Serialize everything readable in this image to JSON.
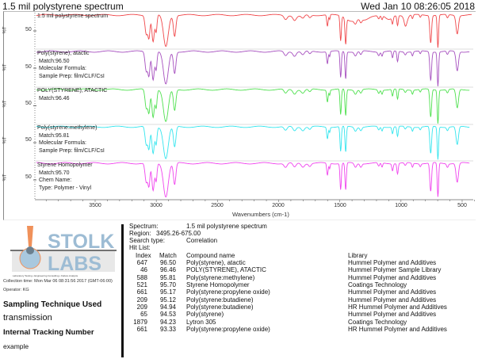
{
  "header": {
    "title": "1.5 mil polystyrene spectrum",
    "datetime": "Wed Jan 10 08:26:05 2018"
  },
  "chart_data": {
    "type": "line",
    "title": "1.5 mil polystyrene spectrum",
    "xlabel": "Wavenumbers (cm-1)",
    "ylabel": "%T",
    "xlim": [
      4000,
      400
    ],
    "x_ticks": [
      3500,
      3000,
      2500,
      2000,
      1500,
      1000,
      500
    ],
    "y_tick_per_panel": "50",
    "layout": "stacked panels, one per spectrum, shared x-axis",
    "series": [
      {
        "name": "1.5 mil polystyrene spectrum",
        "color": "#f0474a",
        "labels": [
          "1.5 mil polystyrene spectrum"
        ],
        "bands_cm1": [
          3082,
          3060,
          3026,
          3001,
          2922,
          2850,
          1943,
          1870,
          1802,
          1745,
          1601,
          1583,
          1493,
          1452,
          1372,
          1328,
          1182,
          1155,
          1069,
          1028,
          906,
          842,
          757,
          698,
          540
        ]
      },
      {
        "name": "Poly(styrene), atactic",
        "color": "#a64fbf",
        "labels": [
          "Poly(styrene), atactic",
          "Match:96.50",
          "Molecular Formula:",
          "Sample Prep:  film/CLF/CsI"
        ],
        "bands_cm1": [
          3082,
          3060,
          3026,
          2922,
          2850,
          1601,
          1493,
          1452,
          1372,
          1069,
          1028,
          757,
          698,
          540
        ]
      },
      {
        "name": "POLY(STYRENE), ATACTIC",
        "color": "#4de04d",
        "labels": [
          "POLY(STYRENE), ATACTIC",
          "Match:96.46"
        ],
        "bands_cm1": [
          3082,
          3060,
          3026,
          2922,
          2850,
          1601,
          1493,
          1452,
          1372,
          1069,
          1028,
          757,
          698,
          540
        ]
      },
      {
        "name": "Poly(styrene:methylene)",
        "color": "#33e5ee",
        "labels": [
          "Poly(styrene:methylene)",
          "Match:95.81",
          "Molecular Formula:",
          "Sample Prep:  film/CLF/CsI"
        ],
        "bands_cm1": [
          3082,
          3060,
          3026,
          2922,
          2850,
          1601,
          1493,
          1452,
          1372,
          1069,
          1028,
          757,
          698,
          540
        ]
      },
      {
        "name": "Styrene Homopolymer",
        "color": "#f044ee",
        "labels": [
          "Styrene Homopolymer",
          "Match:95.70",
          "Chem Name:",
          "Type:  Polymer - Vinyl"
        ],
        "bands_cm1": [
          3082,
          3060,
          3026,
          2922,
          2850,
          1601,
          1493,
          1452,
          1372,
          1069,
          1028,
          757,
          698,
          540
        ]
      }
    ]
  },
  "panels": [
    {
      "ylabel": "%T",
      "ytick": "50",
      "lines": [
        "1.5 mil polystyrene spectrum"
      ]
    },
    {
      "ylabel": "%T",
      "ytick": "50",
      "lines": [
        "Poly(styrene), atactic",
        "Match:96.50",
        "Molecular Formula:",
        "Sample Prep:  film/CLF/CsI"
      ]
    },
    {
      "ylabel": "%T",
      "ytick": "50",
      "lines": [
        "POLY(STYRENE), ATACTIC",
        "Match:96.46"
      ]
    },
    {
      "ylabel": "%T",
      "ytick": "50",
      "lines": [
        "Poly(styrene:methylene)",
        "Match:95.81",
        "Molecular Formula:",
        "Sample Prep:  film/CLF/CsI"
      ]
    },
    {
      "ylabel": "%T",
      "ytick": "50",
      "lines": [
        "Styrene Homopolymer",
        "Match:95.70",
        "Chem Name:",
        "Type:  Polymer - Vinyl"
      ]
    }
  ],
  "xaxis": {
    "label": "Wavenumbers (cm-1)",
    "ticks": [
      "3500",
      "3000",
      "2500",
      "2000",
      "1500",
      "1000",
      "500"
    ]
  },
  "logo": {
    "line1": "STOLK",
    "line2": "LABS",
    "tagline": "Laboratory Testing • Engineering Consulting • Failure Analysis",
    "colors": {
      "text": "#9dbcd4",
      "drop": "#a9c8de",
      "stem": "#f0915a",
      "bar": "#e6e6e6"
    }
  },
  "info": {
    "collection_time": "Collection time: Mon Mar 06 08:31:56 2017 (GMT-06:00)",
    "operator": "Operator:  KG",
    "sampling_heading": "Sampling Technique Used",
    "sampling_value": "transmission",
    "tracking_heading": "Internal Tracking Number",
    "tracking_value": "example"
  },
  "search": {
    "spectrum_label": "Spectrum:",
    "spectrum_value": "1.5 mil polystyrene spectrum",
    "region_label": "Region:",
    "region_value": "3495.26-675.00",
    "search_type_label": "Search type:",
    "search_type_value": "Correlation",
    "hit_list_label": "Hit List:",
    "columns": {
      "index": "Index",
      "match": "Match",
      "compound": "Compound name",
      "library": "Library"
    },
    "hits": [
      {
        "index": "647",
        "match": "96.50",
        "compound": "Poly(styrene), atactic",
        "library": "Hummel Polymer and Additives"
      },
      {
        "index": "46",
        "match": "96.46",
        "compound": "POLY(STYRENE), ATACTIC",
        "library": "Hummel Polymer Sample Library"
      },
      {
        "index": "588",
        "match": "95.81",
        "compound": "Poly(styrene:methylene)",
        "library": "Hummel Polymer and Additives"
      },
      {
        "index": "521",
        "match": "95.70",
        "compound": "Styrene Homopolymer",
        "library": "Coatings Technology"
      },
      {
        "index": "661",
        "match": "95.17",
        "compound": "Poly(styrene:propylene oxide)",
        "library": "Hummel Polymer and Additives"
      },
      {
        "index": "209",
        "match": "95.12",
        "compound": "Poly(styrene:butadiene)",
        "library": "Hummel Polymer and Additives"
      },
      {
        "index": "209",
        "match": "94.94",
        "compound": "Poly(styrene:butadiene)",
        "library": "HR Hummel Polymer and Additives"
      },
      {
        "index": "65",
        "match": "94.53",
        "compound": "Poly(styrene)",
        "library": "Hummel Polymer and Additives"
      },
      {
        "index": "1879",
        "match": "94.23",
        "compound": "Lytron 305",
        "library": "Coatings Technology"
      },
      {
        "index": "661",
        "match": "93.33",
        "compound": "Poly(styrene:propylene oxide)",
        "library": "HR Hummel Polymer and Additives"
      }
    ]
  }
}
